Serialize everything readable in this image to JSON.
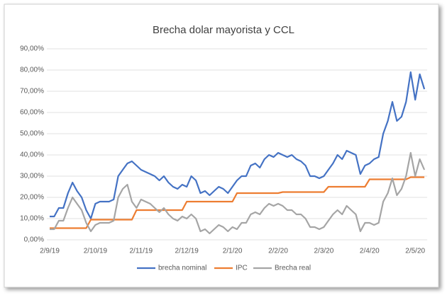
{
  "chart_data": {
    "type": "line",
    "title": "Brecha dolar mayorista y CCL",
    "categories": [
      "2/9/19",
      null,
      null,
      null,
      null,
      null,
      null,
      null,
      null,
      null,
      "2/10/19",
      null,
      null,
      null,
      null,
      null,
      null,
      null,
      null,
      null,
      "2/11/19",
      null,
      null,
      null,
      null,
      null,
      null,
      null,
      null,
      null,
      "2/12/19",
      null,
      null,
      null,
      null,
      null,
      null,
      null,
      null,
      null,
      "2/1/20",
      null,
      null,
      null,
      null,
      null,
      null,
      null,
      null,
      null,
      "2/2/20",
      null,
      null,
      null,
      null,
      null,
      null,
      null,
      null,
      null,
      "2/3/20",
      null,
      null,
      null,
      null,
      null,
      null,
      null,
      null,
      null,
      "2/4/20",
      null,
      null,
      null,
      null,
      null,
      null,
      null,
      null,
      null,
      "2/5/20",
      null,
      null
    ],
    "series": [
      {
        "name": "brecha nominal",
        "color": "#4472c4",
        "values": [
          11,
          11,
          15,
          15,
          22,
          27,
          23,
          20,
          14,
          10,
          17,
          18,
          18,
          18,
          19,
          30,
          33,
          36,
          37,
          35,
          33,
          32,
          31,
          30,
          28,
          30,
          27,
          25,
          24,
          26,
          25,
          30,
          28,
          22,
          23,
          21,
          23,
          25,
          24,
          22,
          25,
          28,
          30,
          30,
          35,
          36,
          34,
          38,
          40,
          39,
          41,
          40,
          39,
          40,
          38,
          37,
          35,
          30,
          30,
          29,
          30,
          33,
          36,
          40,
          38,
          42,
          41,
          40,
          31,
          35,
          36,
          38,
          39,
          50,
          56,
          65,
          56,
          58,
          65,
          79,
          66,
          78,
          71
        ]
      },
      {
        "name": "IPC",
        "color": "#ed7d31",
        "values": [
          5.5,
          5.5,
          5.5,
          5.5,
          5.5,
          5.5,
          5.5,
          5.5,
          5.5,
          9.5,
          9.5,
          9.5,
          9.5,
          9.5,
          9.5,
          9.5,
          9.5,
          9.5,
          9.5,
          14,
          14,
          14,
          14,
          14,
          14,
          14,
          14,
          14,
          14,
          14,
          18,
          18,
          18,
          18,
          18,
          18,
          18,
          18,
          18,
          18,
          18,
          22,
          22,
          22,
          22,
          22,
          22,
          22,
          22,
          22,
          22,
          22.5,
          22.5,
          22.5,
          22.5,
          22.5,
          22.5,
          22.5,
          22.5,
          22.5,
          22.5,
          25,
          25,
          25,
          25,
          25,
          25,
          25,
          25,
          25,
          28.5,
          28.5,
          28.5,
          28.5,
          28.5,
          28.5,
          28.5,
          28.5,
          28.5,
          29.5,
          29.5,
          29.5,
          29.5
        ]
      },
      {
        "name": "Brecha real",
        "color": "#a5a5a5",
        "values": [
          5,
          5,
          9,
          9,
          15,
          20,
          17,
          14,
          8,
          4,
          7,
          8,
          8,
          8,
          9,
          20,
          24,
          26,
          18,
          15,
          19,
          18,
          17,
          15,
          13,
          15,
          12,
          10,
          9,
          11,
          10,
          12,
          10,
          4,
          5,
          3,
          5,
          7,
          6,
          4,
          6,
          5,
          8,
          8,
          12,
          13,
          12,
          15,
          17,
          16,
          17,
          16,
          14,
          14,
          12,
          12,
          10,
          6,
          6,
          5,
          6,
          9,
          12,
          14,
          12,
          16,
          14,
          12,
          4,
          8,
          8,
          7,
          8,
          18,
          22,
          29,
          21,
          24,
          30,
          41,
          30,
          38,
          33
        ]
      }
    ],
    "ylim": [
      0,
      90
    ],
    "yticks": [
      {
        "value": 0,
        "label": "0,00%"
      },
      {
        "value": 10,
        "label": "10,00%"
      },
      {
        "value": 20,
        "label": "20,00%"
      },
      {
        "value": 30,
        "label": "30,00%"
      },
      {
        "value": 40,
        "label": "40,00%"
      },
      {
        "value": 50,
        "label": "50,00%"
      },
      {
        "value": 60,
        "label": "60,00%"
      },
      {
        "value": 70,
        "label": "70,00%"
      },
      {
        "value": 80,
        "label": "80,00%"
      },
      {
        "value": 90,
        "label": "90,00%"
      }
    ],
    "grid": true,
    "legend": "bottom"
  }
}
